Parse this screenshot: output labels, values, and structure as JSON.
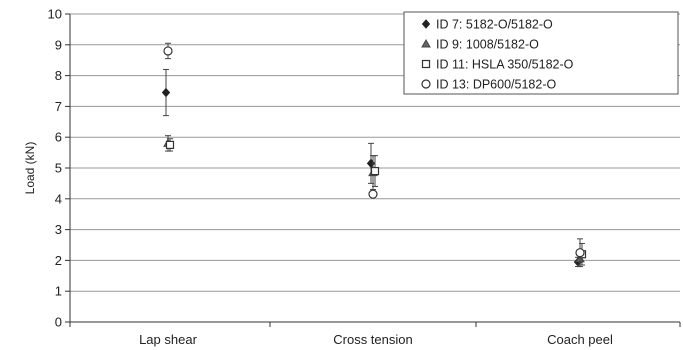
{
  "chart_data": {
    "type": "scatter",
    "ylabel": "Load (kN)",
    "xlabel": "",
    "ylim": [
      0,
      10
    ],
    "yticks": [
      "0",
      "1",
      "2",
      "3",
      "4",
      "5",
      "6",
      "7",
      "8",
      "9",
      "10"
    ],
    "categories": [
      "Lap shear",
      "Cross tension",
      "Coach peel"
    ],
    "grid": "horizontal",
    "legend_position": "top-right",
    "series": [
      {
        "name": "ID 7: 5182-O/5182-O",
        "marker": "filled-diamond",
        "values": [
          7.45,
          5.15,
          1.95
        ],
        "error": [
          0.75,
          0.65,
          0.15
        ]
      },
      {
        "name": "ID 9: 1008/5182-O",
        "marker": "triangle",
        "values": [
          5.8,
          4.85,
          2.05
        ],
        "error": [
          0.25,
          0.55,
          0.2
        ]
      },
      {
        "name": "ID 11: HSLA 350/5182-O",
        "marker": "open-square",
        "values": [
          5.75,
          4.9,
          2.2
        ],
        "error": [
          0.2,
          0.5,
          0.35
        ]
      },
      {
        "name": "ID 13: DP600/5182-O",
        "marker": "open-circle",
        "values": [
          8.8,
          4.15,
          2.25
        ],
        "error": [
          0.25,
          0.1,
          0.45
        ]
      }
    ]
  }
}
